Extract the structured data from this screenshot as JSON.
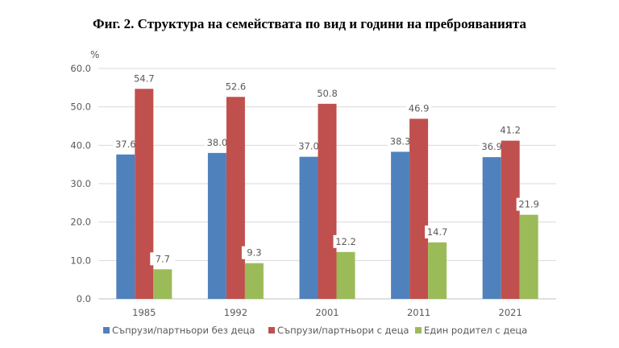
{
  "chart_data": {
    "type": "bar",
    "title": "Фиг. 2. Структура на семействата по вид и години на преброяванията",
    "ylabel": "%",
    "xlabel": "",
    "ylim": [
      0,
      60
    ],
    "yticks": [
      "0.0",
      "10.0",
      "20.0",
      "30.0",
      "40.0",
      "50.0",
      "60.0"
    ],
    "grid": true,
    "legend_position": "bottom",
    "categories": [
      "1985",
      "1992",
      "2001",
      "2011",
      "2021"
    ],
    "series": [
      {
        "name": "Съпрузи/партньори без деца",
        "color": "#4f81bd",
        "values": [
          37.6,
          38.0,
          37.0,
          38.3,
          36.9
        ],
        "labels": [
          "37.6",
          "38.0",
          "37.0",
          "38.3",
          "36.9"
        ]
      },
      {
        "name": "Съпрузи/партньори с деца",
        "color": "#c0504d",
        "values": [
          54.7,
          52.6,
          50.8,
          46.9,
          41.2
        ],
        "labels": [
          "54.7",
          "52.6",
          "50.8",
          "46.9",
          "41.2"
        ]
      },
      {
        "name": "Един родител с деца",
        "color": "#9bbb59",
        "values": [
          7.7,
          9.3,
          12.2,
          14.7,
          21.9
        ],
        "labels": [
          "7.7",
          "9.3",
          "12.2",
          "14.7",
          "21.9"
        ]
      }
    ]
  }
}
